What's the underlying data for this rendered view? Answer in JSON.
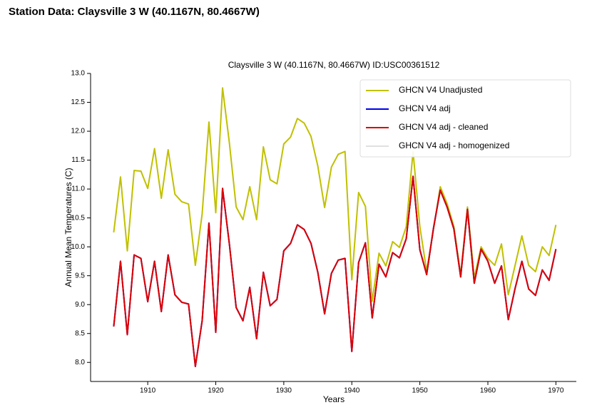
{
  "header": {
    "title": "Station Data: Claysville 3 W (40.1167N, 80.4667W)"
  },
  "chart_data": {
    "type": "line",
    "title": "Claysville 3 W (40.1167N, 80.4667W) ID:USC00361512",
    "x_label": "Years",
    "y_label": "Annual Mean Temperatures (C)",
    "x": [
      1905,
      1906,
      1907,
      1908,
      1909,
      1910,
      1911,
      1912,
      1913,
      1914,
      1915,
      1916,
      1917,
      1918,
      1919,
      1920,
      1921,
      1922,
      1923,
      1924,
      1925,
      1926,
      1927,
      1928,
      1929,
      1930,
      1931,
      1932,
      1933,
      1934,
      1935,
      1936,
      1937,
      1938,
      1939,
      1940,
      1941,
      1942,
      1943,
      1944,
      1945,
      1946,
      1947,
      1948,
      1949,
      1950,
      1951,
      1952,
      1953,
      1954,
      1955,
      1956,
      1957,
      1958,
      1959,
      1960,
      1961,
      1962,
      1963,
      1964,
      1965,
      1966,
      1967,
      1968,
      1969,
      1970
    ],
    "xlim": [
      1901.6,
      1973
    ],
    "xticks": [
      1910,
      1920,
      1930,
      1940,
      1950,
      1960,
      1970
    ],
    "ylim": [
      7.67,
      13.0
    ],
    "yticks": [
      {
        "value": 8,
        "label": "8.0"
      },
      8.5,
      {
        "value": 9,
        "label": "9.0"
      },
      9.5,
      {
        "value": 10,
        "label": "10.0"
      },
      10.5,
      {
        "value": 11,
        "label": "11.0"
      },
      11.5,
      {
        "value": 12,
        "label": "12.0"
      },
      12.5,
      {
        "value": 13,
        "label": "13.0"
      }
    ],
    "legend": "top-right",
    "series": [
      {
        "name": "GHCN V4 Unadjusted",
        "color": "#c0c000",
        "values": [
          10.25,
          11.21,
          9.93,
          11.32,
          11.31,
          11.01,
          11.7,
          10.84,
          11.68,
          10.91,
          10.78,
          10.74,
          9.68,
          10.57,
          12.16,
          10.59,
          12.75,
          11.8,
          10.69,
          10.47,
          11.04,
          10.47,
          11.73,
          11.16,
          11.09,
          11.78,
          11.9,
          12.22,
          12.14,
          11.91,
          11.4,
          10.68,
          11.38,
          11.6,
          11.65,
          9.43,
          10.94,
          10.7,
          9.06,
          9.89,
          9.67,
          10.09,
          9.99,
          10.35,
          11.65,
          10.35,
          9.58,
          10.3,
          11.04,
          10.75,
          10.35,
          9.52,
          10.69,
          9.46,
          10.0,
          9.8,
          9.68,
          10.05,
          9.17,
          9.68,
          10.19,
          9.68,
          9.57,
          10.0,
          9.85,
          10.38
        ]
      },
      {
        "name": "GHCN V4 adj",
        "color": "#0000ee",
        "values": [
          8.62,
          9.75,
          8.48,
          9.86,
          9.8,
          9.05,
          9.75,
          8.88,
          9.86,
          9.17,
          9.04,
          9.01,
          7.93,
          8.72,
          10.41,
          8.52,
          11.01,
          10.05,
          8.95,
          8.72,
          9.3,
          8.41,
          9.56,
          8.98,
          9.09,
          9.93,
          10.06,
          10.38,
          10.3,
          10.06,
          9.56,
          8.84,
          9.54,
          9.77,
          9.8,
          8.19,
          9.73,
          10.07,
          8.77,
          9.7,
          9.48,
          9.9,
          9.81,
          10.14,
          11.22,
          9.95,
          9.52,
          10.32,
          10.98,
          10.69,
          10.31,
          9.48,
          10.65,
          9.37,
          9.96,
          9.75,
          9.37,
          9.67,
          8.74,
          9.28,
          9.75,
          9.27,
          9.16,
          9.6,
          9.42,
          9.96
        ]
      },
      {
        "name": "GHCN V4 adj - cleaned",
        "color": "#dd0000",
        "values": [
          8.62,
          9.75,
          8.48,
          9.86,
          9.8,
          9.05,
          9.75,
          8.88,
          9.86,
          9.17,
          9.04,
          9.01,
          7.93,
          8.72,
          10.41,
          8.52,
          11.01,
          10.05,
          8.95,
          8.72,
          9.3,
          8.41,
          9.56,
          8.98,
          9.09,
          9.93,
          10.06,
          10.38,
          10.3,
          10.06,
          9.56,
          8.84,
          9.54,
          9.77,
          9.8,
          8.19,
          9.73,
          10.07,
          8.77,
          9.7,
          9.48,
          9.9,
          9.81,
          10.14,
          11.22,
          9.95,
          9.52,
          10.32,
          10.98,
          10.69,
          10.31,
          9.48,
          10.65,
          9.37,
          9.96,
          9.75,
          9.37,
          9.67,
          8.74,
          9.28,
          9.75,
          9.27,
          9.16,
          9.6,
          9.42,
          9.96
        ]
      },
      {
        "name": "GHCN V4 adj - homogenized",
        "color": "#e0e0e0",
        "values": [
          8.62,
          9.75,
          8.48,
          9.86,
          9.8,
          9.05,
          9.75,
          8.88,
          9.86,
          9.17,
          9.04,
          9.01,
          7.93,
          8.72,
          10.41,
          8.52,
          11.01,
          10.05,
          8.95,
          8.72,
          9.3,
          8.41,
          9.56,
          8.98,
          9.09,
          9.93,
          10.06,
          10.38,
          10.3,
          10.06,
          9.56,
          8.84,
          9.54,
          9.77,
          9.8,
          8.19,
          9.73,
          10.07,
          8.77,
          9.7,
          9.48,
          9.9,
          9.81,
          10.14,
          11.22,
          9.95,
          9.52,
          10.32,
          10.98,
          10.69,
          10.31,
          9.48,
          10.65,
          9.37,
          9.96,
          9.75,
          9.37,
          9.67,
          8.74,
          9.28,
          9.75,
          9.27,
          9.16,
          9.6,
          9.42,
          9.96
        ]
      }
    ]
  }
}
